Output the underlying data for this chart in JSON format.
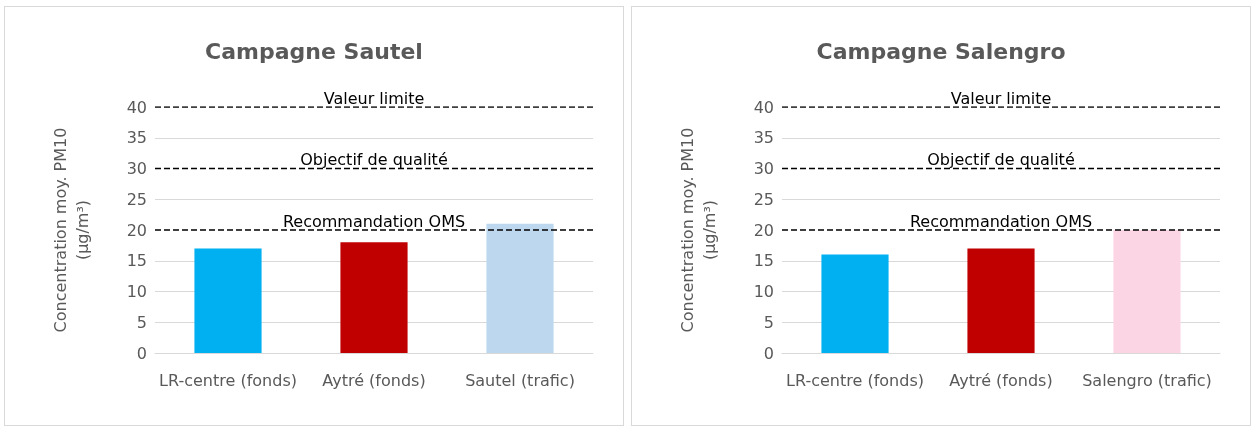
{
  "chart_data": [
    {
      "type": "bar",
      "title": "Campagne Sautel",
      "ylabel": "Concentration moy. PM10 (µg/m³)",
      "categories": [
        "LR-centre (fonds)",
        "Aytré (fonds)",
        "Sautel (trafic)"
      ],
      "values": [
        17,
        18,
        21
      ],
      "colors": [
        "#00b0f0",
        "#c00000",
        "#bdd7ee"
      ],
      "ylim": [
        0,
        40
      ],
      "yticks": [
        0,
        5,
        10,
        15,
        20,
        25,
        30,
        35,
        40
      ],
      "grid": "y",
      "legend": false,
      "ref_lines": [
        {
          "axis": "y",
          "value": 40,
          "label": "Valeur limite",
          "color": "#000000",
          "line_style": "dashed"
        },
        {
          "axis": "y",
          "value": 30,
          "label": "Objectif de qualité",
          "color": "#000000",
          "line_style": "dashed"
        },
        {
          "axis": "y",
          "value": 20,
          "label": "Recommandation OMS",
          "color": "#000000",
          "line_style": "dashed"
        }
      ]
    },
    {
      "type": "bar",
      "title": "Campagne Salengro",
      "ylabel": "Concentration moy. PM10 (µg/m³)",
      "categories": [
        "LR-centre (fonds)",
        "Aytré (fonds)",
        "Salengro (trafic)"
      ],
      "values": [
        16,
        17,
        20
      ],
      "colors": [
        "#00b0f0",
        "#c00000",
        "#fcd5e5"
      ],
      "ylim": [
        0,
        40
      ],
      "yticks": [
        0,
        5,
        10,
        15,
        20,
        25,
        30,
        35,
        40
      ],
      "grid": "y",
      "legend": false,
      "ref_lines": [
        {
          "axis": "y",
          "value": 40,
          "label": "Valeur limite",
          "color": "#000000",
          "line_style": "dashed"
        },
        {
          "axis": "y",
          "value": 30,
          "label": "Objectif de qualité",
          "color": "#000000",
          "line_style": "dashed"
        },
        {
          "axis": "y",
          "value": 20,
          "label": "Recommandation OMS",
          "color": "#000000",
          "line_style": "dashed"
        }
      ]
    }
  ]
}
